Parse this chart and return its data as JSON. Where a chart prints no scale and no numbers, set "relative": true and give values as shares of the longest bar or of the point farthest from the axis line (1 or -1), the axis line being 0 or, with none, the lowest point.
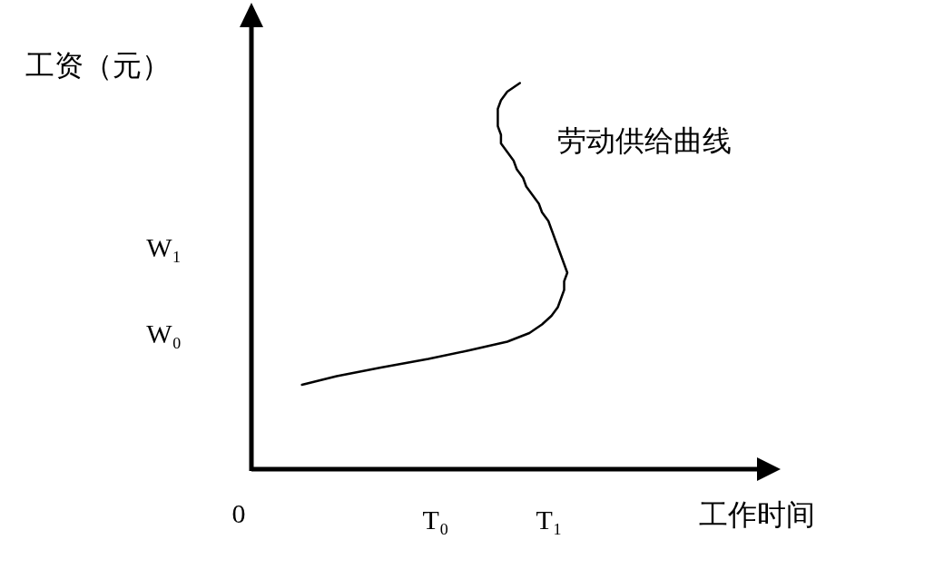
{
  "chart_data": {
    "type": "line",
    "orientation": "horizontal",
    "relative": true,
    "ylabel": "工资（元）",
    "categories": [
      null,
      null,
      null,
      null,
      null,
      null,
      null,
      null,
      null,
      null,
      null,
      null,
      null,
      null,
      null,
      null,
      null,
      null,
      null,
      "W₁",
      null,
      null,
      null,
      null,
      null,
      null,
      null,
      null,
      null,
      "W₀",
      null,
      null,
      null,
      null,
      null,
      null
    ],
    "annotations": [
      "0",
      "T₀",
      "T₁",
      "工作时间"
    ],
    "series": [
      {
        "name": "劳动供给曲线",
        "color": "#000000",
        "values": [
          0.85,
          0.81,
          0.79,
          0.78,
          0.78,
          0.78,
          0.79,
          0.79,
          0.81,
          0.83,
          0.84,
          0.86,
          0.87,
          0.89,
          0.91,
          0.92,
          0.94,
          0.95,
          0.96,
          0.97,
          0.98,
          0.99,
          1.0,
          0.99,
          0.99,
          0.98,
          0.97,
          0.95,
          0.92,
          0.88,
          0.81,
          0.69,
          0.56,
          0.41,
          0.27,
          0.16
        ]
      }
    ]
  }
}
